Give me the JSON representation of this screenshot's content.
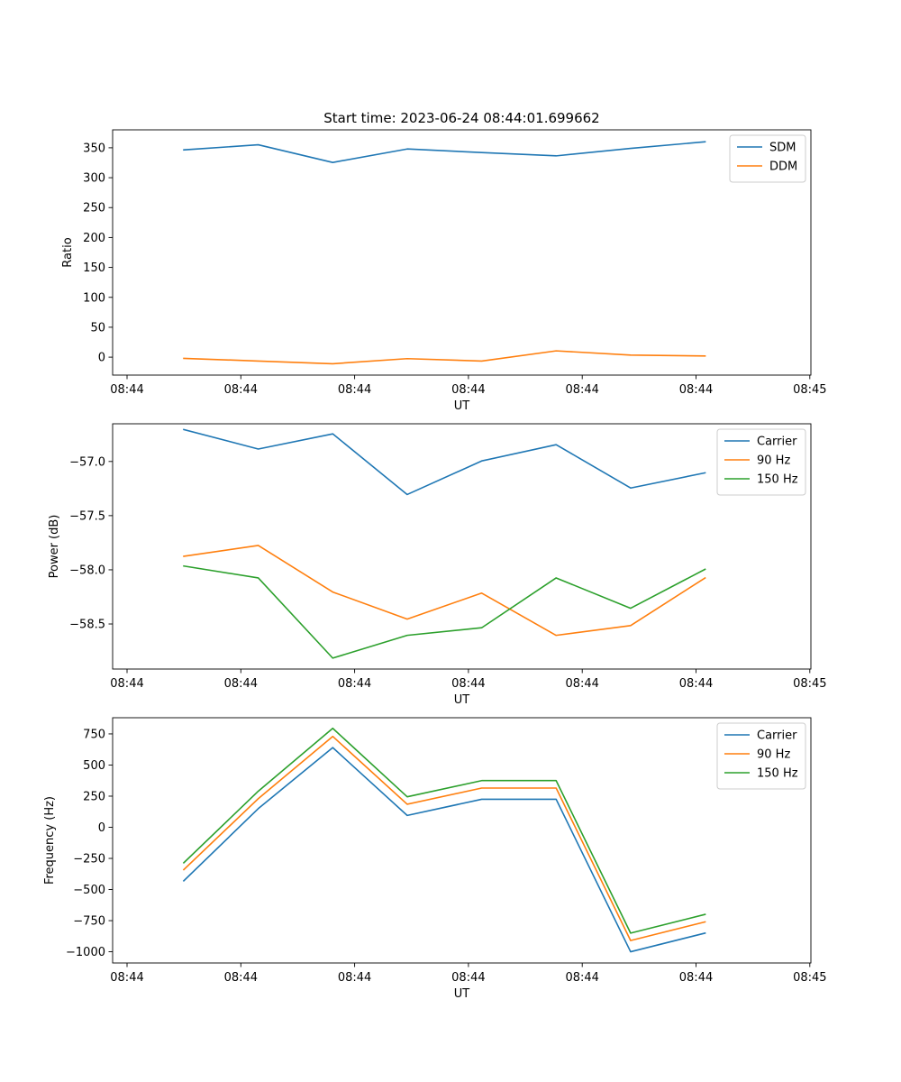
{
  "title": "Start time: 2023-06-24 08:44:01.699662",
  "colors": {
    "c0": "#1f77b4",
    "c1": "#ff7f0e",
    "c2": "#2ca02c"
  },
  "chart_data": [
    {
      "type": "line",
      "title": "Start time: 2023-06-24 08:44:01.699662",
      "xlabel": "UT",
      "ylabel": "Ratio",
      "x_tick_labels": [
        "08:44",
        "08:44",
        "08:44",
        "08:44",
        "08:44",
        "08:44",
        "08:45"
      ],
      "y_ticks": [
        0,
        50,
        100,
        150,
        200,
        250,
        300,
        350
      ],
      "y_tick_labels": [
        "0",
        "50",
        "100",
        "150",
        "200",
        "250",
        "300",
        "350"
      ],
      "ylim": [
        -30,
        380
      ],
      "legend": "top-right",
      "series": [
        {
          "name": "SDM",
          "color": "#1f77b4",
          "values": [
            346.5,
            355,
            325.5,
            348,
            342,
            336.5,
            349,
            360
          ]
        },
        {
          "name": "DDM",
          "color": "#ff7f0e",
          "values": [
            -2,
            -6.5,
            -11,
            -2.5,
            -6.5,
            10.5,
            3.5,
            2
          ]
        }
      ]
    },
    {
      "type": "line",
      "xlabel": "UT",
      "ylabel": "Power (dB)",
      "x_tick_labels": [
        "08:44",
        "08:44",
        "08:44",
        "08:44",
        "08:44",
        "08:44",
        "08:45"
      ],
      "y_ticks": [
        -58.5,
        -58.0,
        -57.5,
        -57.0
      ],
      "y_tick_labels": [
        "−58.5",
        "−58.0",
        "−57.5",
        "−57.0"
      ],
      "ylim": [
        -58.916,
        -56.652
      ],
      "legend": "top-right",
      "series": [
        {
          "name": "Carrier",
          "color": "#1f77b4",
          "values": [
            -56.705,
            -56.885,
            -56.745,
            -57.305,
            -56.995,
            -56.845,
            -57.245,
            -57.105
          ]
        },
        {
          "name": "90 Hz",
          "color": "#ff7f0e",
          "values": [
            -57.875,
            -57.775,
            -58.205,
            -58.455,
            -58.215,
            -58.605,
            -58.515,
            -58.075
          ]
        },
        {
          "name": "150 Hz",
          "color": "#2ca02c",
          "values": [
            -57.965,
            -58.075,
            -58.815,
            -58.605,
            -58.535,
            -58.075,
            -58.355,
            -57.995
          ]
        }
      ]
    },
    {
      "type": "line",
      "xlabel": "UT",
      "ylabel": "Frequency (Hz)",
      "x_tick_labels": [
        "08:44",
        "08:44",
        "08:44",
        "08:44",
        "08:44",
        "08:44",
        "08:45"
      ],
      "y_ticks": [
        -1000,
        -750,
        -500,
        -250,
        0,
        250,
        500,
        750
      ],
      "y_tick_labels": [
        "−1000",
        "−750",
        "−500",
        "−250",
        "0",
        "250",
        "500",
        "750"
      ],
      "ylim": [
        -1090,
        880
      ],
      "legend": "top-right",
      "series": [
        {
          "name": "Carrier",
          "color": "#1f77b4",
          "values": [
            -430,
            150,
            640,
            95,
            225,
            225,
            -1000,
            -850
          ]
        },
        {
          "name": "90 Hz",
          "color": "#ff7f0e",
          "values": [
            -340,
            230,
            730,
            185,
            315,
            315,
            -910,
            -760
          ]
        },
        {
          "name": "150 Hz",
          "color": "#2ca02c",
          "values": [
            -285,
            290,
            795,
            245,
            375,
            375,
            -850,
            -700
          ]
        }
      ]
    }
  ]
}
